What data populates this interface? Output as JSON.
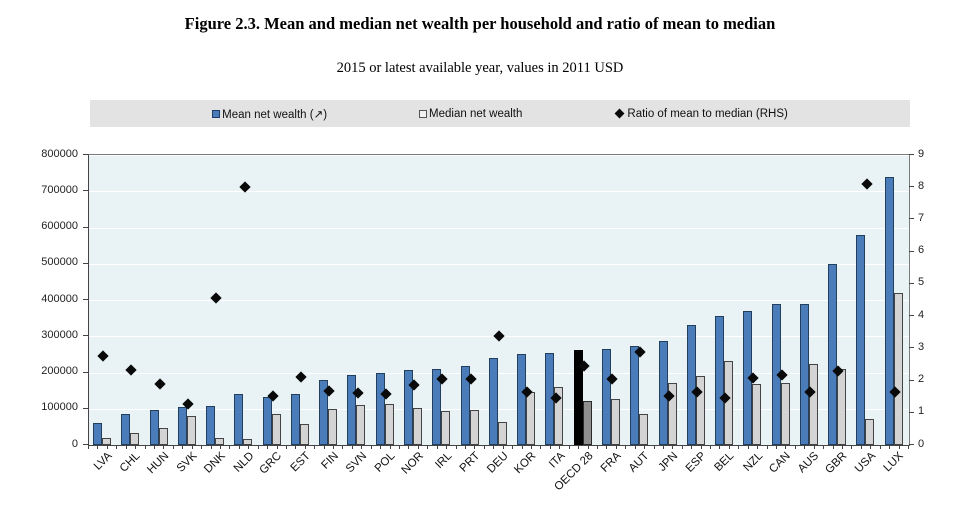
{
  "figure": {
    "title": "Figure 2.3. Mean and median net wealth per household and ratio of mean to median",
    "subtitle": "2015 or latest available year, values in 2011 USD"
  },
  "legend": {
    "mean_label": "Mean net wealth (↗)",
    "median_label": "Median net wealth",
    "ratio_label": "Ratio of mean to median (RHS)"
  },
  "colors": {
    "mean_bar": "#4a7cba",
    "mean_bar_border": "#233f5e",
    "median_bar": "#d4d4d4",
    "median_bar_border": "#444444",
    "highlight_mean": "#000000",
    "highlight_mean_border": "#000000",
    "highlight_median": "#8f8f8f",
    "highlight_median_border": "#2b2b2b",
    "diamond": "#0a0a0a",
    "plot_bg": "#e9f3f5",
    "legend_bg": "#e3e3e3",
    "gridline": "#ffffff"
  },
  "chart_data": {
    "type": "bar",
    "title": "Figure 2.3. Mean and median net wealth per household and ratio of mean to median",
    "subtitle": "2015 or latest available year, values in 2011 USD",
    "grid": true,
    "legend_position": "top",
    "highlight_category": "OECD 28",
    "categories": [
      "LVA",
      "CHL",
      "HUN",
      "SVK",
      "DNK",
      "NLD",
      "GRC",
      "EST",
      "FIN",
      "SVN",
      "POL",
      "NOR",
      "IRL",
      "PRT",
      "DEU",
      "KOR",
      "ITA",
      "OECD 28",
      "FRA",
      "AUT",
      "JPN",
      "ESP",
      "BEL",
      "NZL",
      "CAN",
      "AUS",
      "GBR",
      "USA",
      "LUX"
    ],
    "series": [
      {
        "name": "Mean net wealth",
        "axis": "left",
        "style": "bar",
        "values": [
          60000,
          85000,
          96000,
          106000,
          108000,
          140000,
          133000,
          142000,
          180000,
          192000,
          198000,
          207000,
          211000,
          218000,
          240000,
          251000,
          253000,
          262000,
          264000,
          272000,
          286000,
          331000,
          356000,
          370000,
          388000,
          388000,
          500000,
          580000,
          740000
        ]
      },
      {
        "name": "Median net wealth",
        "axis": "left",
        "style": "bar",
        "values": [
          19000,
          34000,
          46000,
          80000,
          20000,
          17000,
          85000,
          57000,
          100000,
          110000,
          114000,
          103000,
          94000,
          97000,
          64000,
          145000,
          160000,
          122000,
          126000,
          86000,
          172000,
          190000,
          232000,
          168000,
          170000,
          223000,
          209000,
          72000,
          418000
        ]
      },
      {
        "name": "Ratio of mean to median (RHS)",
        "axis": "right",
        "style": "diamond",
        "values": [
          2.75,
          2.33,
          1.89,
          1.26,
          4.57,
          8.0,
          1.53,
          2.1,
          1.68,
          1.61,
          1.58,
          1.85,
          2.04,
          2.06,
          3.39,
          1.66,
          1.45,
          2.46,
          2.04,
          2.9,
          1.52,
          1.65,
          1.45,
          2.07,
          2.17,
          1.65,
          2.3,
          8.1,
          1.66
        ]
      }
    ],
    "left_axis": {
      "max": 800000,
      "min": 0,
      "ticks": [
        "0",
        "100000",
        "200000",
        "300000",
        "400000",
        "500000",
        "600000",
        "700000",
        "800000"
      ]
    },
    "right_axis": {
      "max": 9,
      "min": 0,
      "ticks": [
        "0",
        "1",
        "2",
        "3",
        "4",
        "5",
        "6",
        "7",
        "8",
        "9"
      ]
    }
  }
}
